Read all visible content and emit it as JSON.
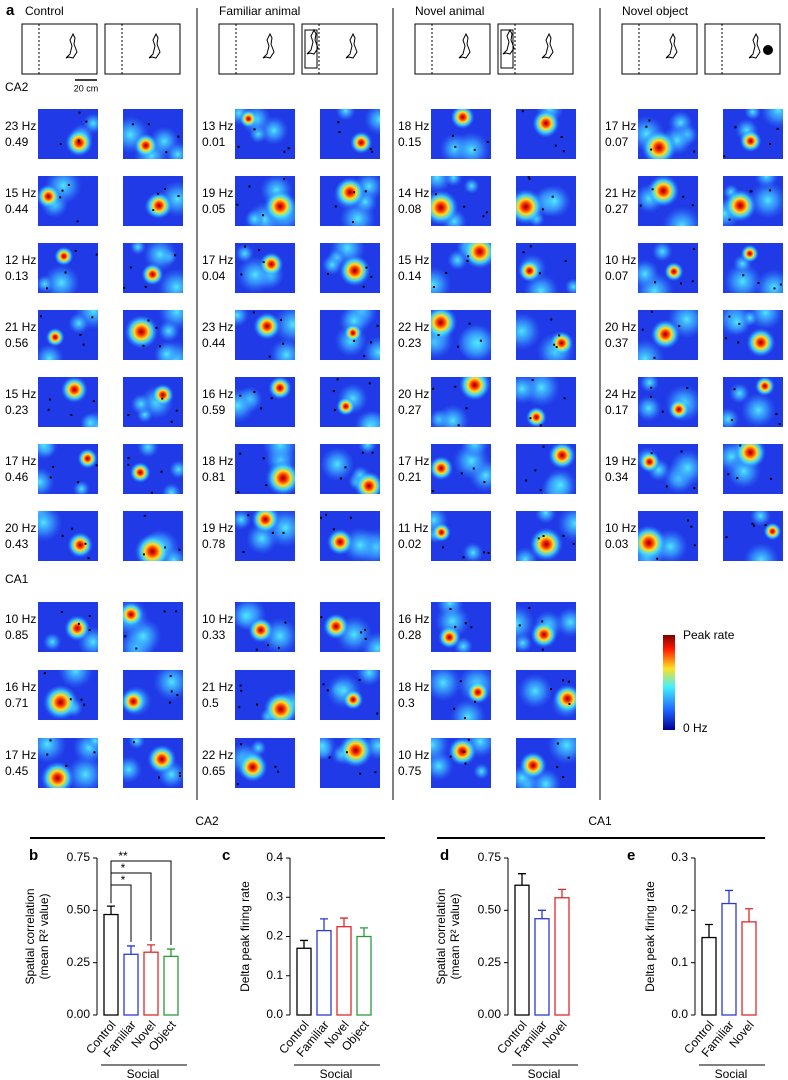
{
  "panel_a": {
    "label": "a",
    "region_labels": [
      "CA2",
      "CA1"
    ],
    "scale_bar": "20 cm",
    "colorbar": {
      "max_label": "Peak rate",
      "min_label": "0 Hz"
    },
    "groups": [
      {
        "title": "Control",
        "CA2": [
          {
            "rate": "23 Hz",
            "corr": "0.49"
          },
          {
            "rate": "15 Hz",
            "corr": "0.44"
          },
          {
            "rate": "12 Hz",
            "corr": "0.13"
          },
          {
            "rate": "21 Hz",
            "corr": "0.56"
          },
          {
            "rate": "15 Hz",
            "corr": "0.23"
          },
          {
            "rate": "17 Hz",
            "corr": "0.46"
          },
          {
            "rate": "20 Hz",
            "corr": "0.43"
          }
        ],
        "CA1": [
          {
            "rate": "10 Hz",
            "corr": "0.85"
          },
          {
            "rate": "16 Hz",
            "corr": "0.71"
          },
          {
            "rate": "17 Hz",
            "corr": "0.45"
          }
        ]
      },
      {
        "title": "Familiar animal",
        "CA2": [
          {
            "rate": "13 Hz",
            "corr": "0.01"
          },
          {
            "rate": "19 Hz",
            "corr": "0.05"
          },
          {
            "rate": "17 Hz",
            "corr": "0.04"
          },
          {
            "rate": "23 Hz",
            "corr": "0.44"
          },
          {
            "rate": "16 Hz",
            "corr": "0.59"
          },
          {
            "rate": "18 Hz",
            "corr": "0.81"
          },
          {
            "rate": "19 Hz",
            "corr": "0.78"
          }
        ],
        "CA1": [
          {
            "rate": "10 Hz",
            "corr": "0.33"
          },
          {
            "rate": "21 Hz",
            "corr": "0.5"
          },
          {
            "rate": "22 Hz",
            "corr": "0.65"
          }
        ]
      },
      {
        "title": "Novel animal",
        "CA2": [
          {
            "rate": "18 Hz",
            "corr": "0.15"
          },
          {
            "rate": "14 Hz",
            "corr": "0.08"
          },
          {
            "rate": "15 Hz",
            "corr": "0.14"
          },
          {
            "rate": "22 Hz",
            "corr": "0.23"
          },
          {
            "rate": "20 Hz",
            "corr": "0.27"
          },
          {
            "rate": "17 Hz",
            "corr": "0.21"
          },
          {
            "rate": "11 Hz",
            "corr": "0.02"
          }
        ],
        "CA1": [
          {
            "rate": "16 Hz",
            "corr": "0.28"
          },
          {
            "rate": "18 Hz",
            "corr": "0.3"
          },
          {
            "rate": "10 Hz",
            "corr": "0.75"
          }
        ]
      },
      {
        "title": "Novel object",
        "CA2": [
          {
            "rate": "17 Hz",
            "corr": "0.07"
          },
          {
            "rate": "21 Hz",
            "corr": "0.27"
          },
          {
            "rate": "10 Hz",
            "corr": "0.07"
          },
          {
            "rate": "20 Hz",
            "corr": "0.37"
          },
          {
            "rate": "24 Hz",
            "corr": "0.17"
          },
          {
            "rate": "19 Hz",
            "corr": "0.34"
          },
          {
            "rate": "10 Hz",
            "corr": "0.03"
          }
        ],
        "CA1": []
      }
    ]
  },
  "section_labels": [
    "CA2",
    "CA1"
  ],
  "chart_data": [
    {
      "type": "bar",
      "panel": "b",
      "ylabel": [
        "Spatial correlation",
        "(mean R² value)"
      ],
      "categories": [
        "Control",
        "Familiar",
        "Novel",
        "Object"
      ],
      "group_label": "Social",
      "values": [
        0.48,
        0.29,
        0.3,
        0.28
      ],
      "errors": [
        0.04,
        0.04,
        0.035,
        0.035
      ],
      "colors": [
        "#000000",
        "#2a3bd6",
        "#e0282e",
        "#2a9a3a"
      ],
      "ylim": [
        0,
        0.75
      ],
      "yticks": [
        {
          "value": 0,
          "label": "0.00"
        },
        {
          "value": 0.25,
          "label": "0.25"
        },
        {
          "value": 0.5,
          "label": "0.50"
        },
        {
          "value": 0.75,
          "label": "0.75"
        }
      ],
      "significance": [
        "*",
        "*",
        "**"
      ]
    },
    {
      "type": "bar",
      "panel": "c",
      "ylabel": [
        "Delta peak firing rate"
      ],
      "categories": [
        "Control",
        "Familiar",
        "Novel",
        "Object"
      ],
      "group_label": "Social",
      "values": [
        0.17,
        0.215,
        0.225,
        0.2
      ],
      "errors": [
        0.02,
        0.03,
        0.022,
        0.022
      ],
      "colors": [
        "#000000",
        "#2a3bd6",
        "#e0282e",
        "#2a9a3a"
      ],
      "ylim": [
        0,
        0.4
      ],
      "yticks": [
        {
          "value": 0,
          "label": "0.0"
        },
        0.1,
        0.2,
        0.3,
        0.4
      ]
    },
    {
      "type": "bar",
      "panel": "d",
      "ylabel": [
        "Spatial correlation",
        "(mean R² value)"
      ],
      "categories": [
        "Control",
        "Familiar",
        "Novel"
      ],
      "group_label": "Social",
      "values": [
        0.62,
        0.46,
        0.56
      ],
      "errors": [
        0.055,
        0.04,
        0.04
      ],
      "colors": [
        "#000000",
        "#2a3bd6",
        "#e0282e"
      ],
      "ylim": [
        0,
        0.75
      ],
      "yticks": [
        {
          "value": 0,
          "label": "0.00"
        },
        {
          "value": 0.25,
          "label": "0.25"
        },
        {
          "value": 0.5,
          "label": "0.50"
        },
        {
          "value": 0.75,
          "label": "0.75"
        }
      ]
    },
    {
      "type": "bar",
      "panel": "e",
      "ylabel": [
        "Delta peak firing rate"
      ],
      "categories": [
        "Control",
        "Familiar",
        "Novel"
      ],
      "group_label": "Social",
      "values": [
        0.148,
        0.213,
        0.178
      ],
      "errors": [
        0.025,
        0.025,
        0.025
      ],
      "colors": [
        "#000000",
        "#2a3bd6",
        "#e0282e"
      ],
      "ylim": [
        0,
        0.3
      ],
      "yticks": [
        {
          "value": 0,
          "label": "0.0"
        },
        0.1,
        0.2,
        0.3
      ]
    }
  ]
}
